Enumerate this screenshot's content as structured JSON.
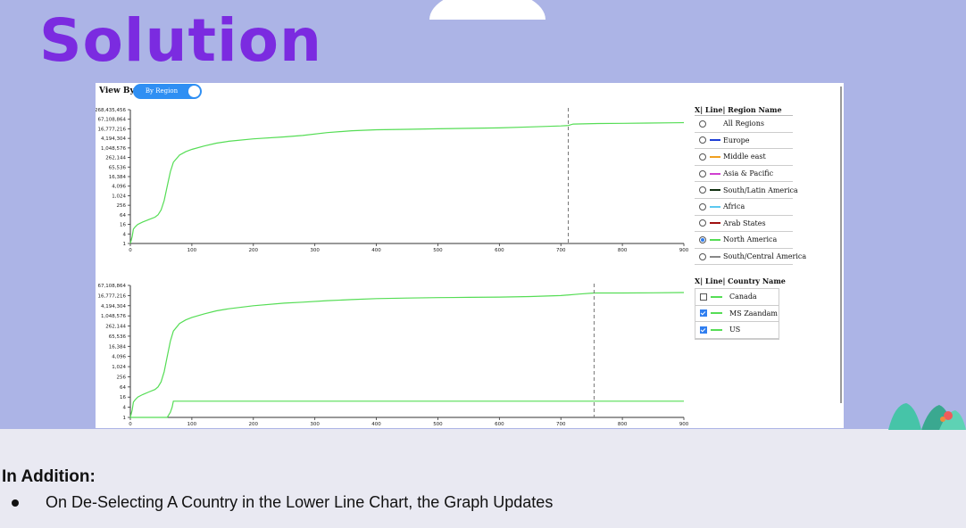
{
  "slide": {
    "title": "Solution",
    "colors": {
      "background_top": "#acb4e6",
      "title": "#7b2be0",
      "background_bottom": "#e9e9f2"
    }
  },
  "app": {
    "view_by_label": "View By:",
    "toggle_label": "By Region",
    "toggle_on": true
  },
  "region_legend": {
    "title": "X| Line| Region Name",
    "items": [
      {
        "label": "All Regions",
        "color": "",
        "selected": false
      },
      {
        "label": "Europe",
        "color": "#1f3fd6",
        "selected": false
      },
      {
        "label": "Middle east",
        "color": "#f0a020",
        "selected": false
      },
      {
        "label": "Asia & Pacific",
        "color": "#d040d0",
        "selected": false
      },
      {
        "label": "South/Latin America",
        "color": "#103010",
        "selected": false
      },
      {
        "label": "Africa",
        "color": "#5cc8f0",
        "selected": false
      },
      {
        "label": "Arab States",
        "color": "#a01010",
        "selected": false
      },
      {
        "label": "North America",
        "color": "#55dd55",
        "selected": true
      },
      {
        "label": "South/Central America",
        "color": "#888888",
        "selected": false
      }
    ]
  },
  "country_legend": {
    "title": "X| Line| Country Name",
    "items": [
      {
        "label": "Canada",
        "color": "#55dd55",
        "checked": false
      },
      {
        "label": "MS Zaandam",
        "color": "#55dd55",
        "checked": true
      },
      {
        "label": "US",
        "color": "#55dd55",
        "checked": true
      }
    ]
  },
  "chart_data": [
    {
      "type": "line",
      "scale": "log2",
      "x_ticks": [
        "0",
        "100",
        "200",
        "300",
        "400",
        "500",
        "600",
        "700",
        "800",
        "900"
      ],
      "y_ticks": [
        "1",
        "4",
        "16",
        "64",
        "256",
        "1,024",
        "4,096",
        "16,384",
        "65,536",
        "262,144",
        "1,048,576",
        "4,194,304",
        "16,777,216",
        "67,108,864",
        "268,435,456"
      ],
      "xlim": [
        0,
        900
      ],
      "ylim_exp": [
        0,
        28
      ],
      "marker_x": 712,
      "series": [
        {
          "color": "#55dd55",
          "x": [
            0,
            3,
            5,
            8,
            12,
            20,
            30,
            40,
            45,
            50,
            55,
            60,
            65,
            70,
            80,
            90,
            100,
            120,
            140,
            160,
            200,
            250,
            280,
            320,
            360,
            400,
            450,
            500,
            550,
            600,
            650,
            700,
            712,
            720,
            760,
            800,
            840,
            880,
            900
          ],
          "y_exp": [
            0,
            1.5,
            3,
            3.5,
            4,
            4.5,
            5,
            5.5,
            6,
            7,
            9,
            12,
            15,
            17,
            18.5,
            19.2,
            19.7,
            20.4,
            21,
            21.4,
            21.9,
            22.3,
            22.6,
            23.2,
            23.6,
            23.8,
            23.9,
            24,
            24.1,
            24.2,
            24.4,
            24.6,
            24.7,
            25,
            25.1,
            25.15,
            25.2,
            25.25,
            25.3
          ]
        }
      ]
    },
    {
      "type": "line",
      "scale": "log2",
      "x_ticks": [
        "0",
        "100",
        "200",
        "300",
        "400",
        "500",
        "600",
        "700",
        "800",
        "900"
      ],
      "y_ticks": [
        "1",
        "4",
        "16",
        "64",
        "256",
        "1,024",
        "4,096",
        "16,384",
        "65,536",
        "262,144",
        "1,048,576",
        "4,194,304",
        "16,777,216",
        "67,108,864"
      ],
      "xlim": [
        0,
        900
      ],
      "ylim_exp": [
        0,
        26
      ],
      "marker_x": 754,
      "series": [
        {
          "color": "#55dd55",
          "x": [
            0,
            3,
            5,
            8,
            12,
            20,
            30,
            40,
            45,
            50,
            55,
            60,
            65,
            70,
            80,
            90,
            100,
            120,
            140,
            160,
            200,
            250,
            280,
            320,
            360,
            400,
            450,
            500,
            550,
            600,
            650,
            700,
            730,
            754,
            800,
            850,
            900
          ],
          "y_exp": [
            0,
            1.5,
            3,
            3.5,
            4,
            4.5,
            5,
            5.5,
            6,
            7,
            9,
            12,
            15,
            17,
            18.5,
            19.2,
            19.7,
            20.4,
            21,
            21.4,
            22,
            22.5,
            22.7,
            23,
            23.2,
            23.4,
            23.5,
            23.6,
            23.65,
            23.7,
            23.8,
            24,
            24.3,
            24.5,
            24.5,
            24.55,
            24.6
          ]
        },
        {
          "color": "#55dd55",
          "x": [
            0,
            60,
            65,
            68,
            70,
            200,
            400,
            600,
            800,
            900
          ],
          "y_exp": [
            0,
            0,
            1,
            2,
            3.2,
            3.2,
            3.2,
            3.2,
            3.2,
            3.2
          ]
        }
      ]
    }
  ],
  "addition": {
    "title": "In Addition:",
    "bullet": "On De-Selecting A Country in the Lower Line Chart, the Graph Updates"
  }
}
